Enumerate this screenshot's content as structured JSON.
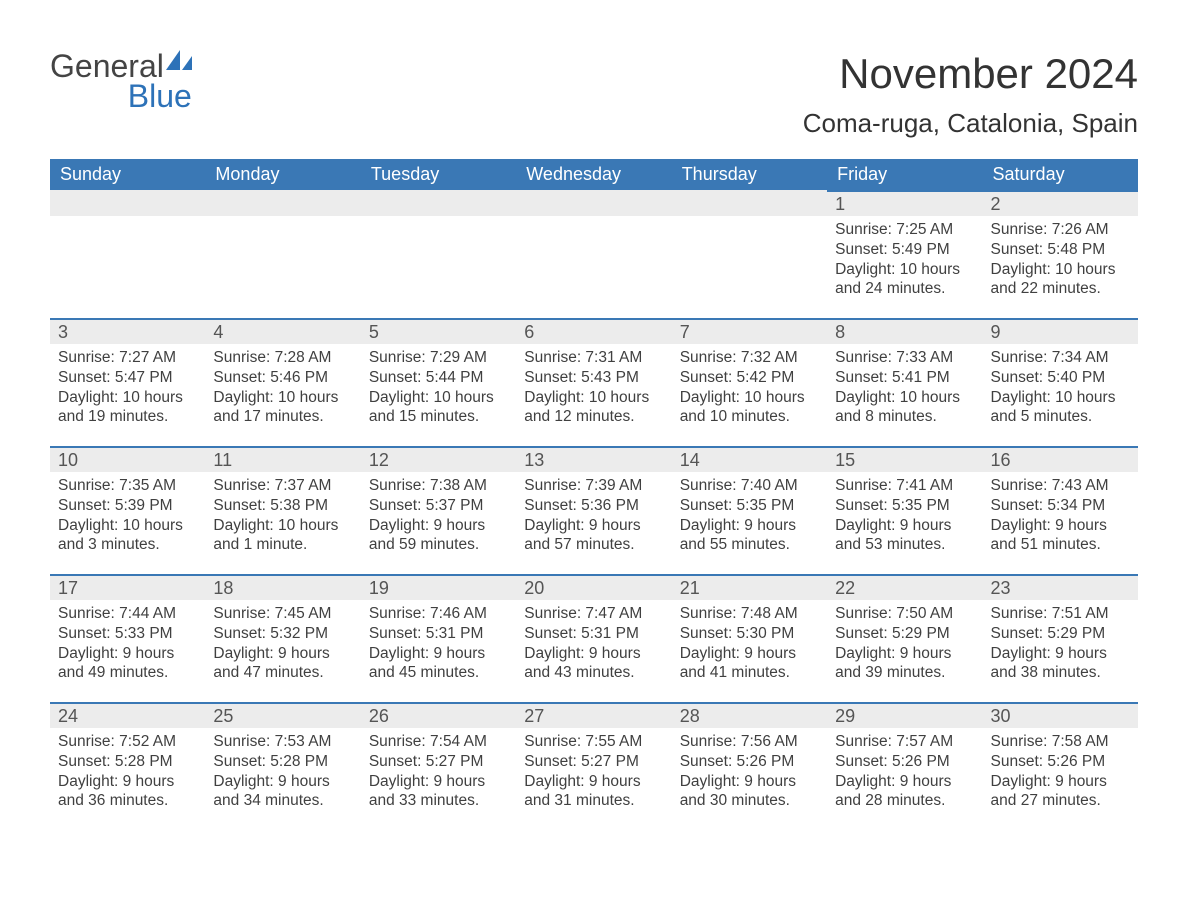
{
  "brand": {
    "general": "General",
    "blue": "Blue",
    "sail_color": "#2d72b8"
  },
  "title": "November 2024",
  "location": "Coma-ruga, Catalonia, Spain",
  "colors": {
    "header_bg": "#3a78b5",
    "header_text": "#ffffff",
    "row_accent": "#3a78b5",
    "daynum_bg": "#ececec",
    "body_text": "#404040",
    "page_bg": "#ffffff"
  },
  "typography": {
    "title_fontsize": 42,
    "location_fontsize": 26,
    "weekday_fontsize": 18,
    "daynum_fontsize": 18,
    "body_fontsize": 15.5
  },
  "weekdays": [
    "Sunday",
    "Monday",
    "Tuesday",
    "Wednesday",
    "Thursday",
    "Friday",
    "Saturday"
  ],
  "grid": {
    "rows": 5,
    "cols": 7,
    "first_weekday_index": 5
  },
  "days": [
    {
      "n": 1,
      "sunrise": "7:25 AM",
      "sunset": "5:49 PM",
      "daylight": "10 hours and 24 minutes."
    },
    {
      "n": 2,
      "sunrise": "7:26 AM",
      "sunset": "5:48 PM",
      "daylight": "10 hours and 22 minutes."
    },
    {
      "n": 3,
      "sunrise": "7:27 AM",
      "sunset": "5:47 PM",
      "daylight": "10 hours and 19 minutes."
    },
    {
      "n": 4,
      "sunrise": "7:28 AM",
      "sunset": "5:46 PM",
      "daylight": "10 hours and 17 minutes."
    },
    {
      "n": 5,
      "sunrise": "7:29 AM",
      "sunset": "5:44 PM",
      "daylight": "10 hours and 15 minutes."
    },
    {
      "n": 6,
      "sunrise": "7:31 AM",
      "sunset": "5:43 PM",
      "daylight": "10 hours and 12 minutes."
    },
    {
      "n": 7,
      "sunrise": "7:32 AM",
      "sunset": "5:42 PM",
      "daylight": "10 hours and 10 minutes."
    },
    {
      "n": 8,
      "sunrise": "7:33 AM",
      "sunset": "5:41 PM",
      "daylight": "10 hours and 8 minutes."
    },
    {
      "n": 9,
      "sunrise": "7:34 AM",
      "sunset": "5:40 PM",
      "daylight": "10 hours and 5 minutes."
    },
    {
      "n": 10,
      "sunrise": "7:35 AM",
      "sunset": "5:39 PM",
      "daylight": "10 hours and 3 minutes."
    },
    {
      "n": 11,
      "sunrise": "7:37 AM",
      "sunset": "5:38 PM",
      "daylight": "10 hours and 1 minute."
    },
    {
      "n": 12,
      "sunrise": "7:38 AM",
      "sunset": "5:37 PM",
      "daylight": "9 hours and 59 minutes."
    },
    {
      "n": 13,
      "sunrise": "7:39 AM",
      "sunset": "5:36 PM",
      "daylight": "9 hours and 57 minutes."
    },
    {
      "n": 14,
      "sunrise": "7:40 AM",
      "sunset": "5:35 PM",
      "daylight": "9 hours and 55 minutes."
    },
    {
      "n": 15,
      "sunrise": "7:41 AM",
      "sunset": "5:35 PM",
      "daylight": "9 hours and 53 minutes."
    },
    {
      "n": 16,
      "sunrise": "7:43 AM",
      "sunset": "5:34 PM",
      "daylight": "9 hours and 51 minutes."
    },
    {
      "n": 17,
      "sunrise": "7:44 AM",
      "sunset": "5:33 PM",
      "daylight": "9 hours and 49 minutes."
    },
    {
      "n": 18,
      "sunrise": "7:45 AM",
      "sunset": "5:32 PM",
      "daylight": "9 hours and 47 minutes."
    },
    {
      "n": 19,
      "sunrise": "7:46 AM",
      "sunset": "5:31 PM",
      "daylight": "9 hours and 45 minutes."
    },
    {
      "n": 20,
      "sunrise": "7:47 AM",
      "sunset": "5:31 PM",
      "daylight": "9 hours and 43 minutes."
    },
    {
      "n": 21,
      "sunrise": "7:48 AM",
      "sunset": "5:30 PM",
      "daylight": "9 hours and 41 minutes."
    },
    {
      "n": 22,
      "sunrise": "7:50 AM",
      "sunset": "5:29 PM",
      "daylight": "9 hours and 39 minutes."
    },
    {
      "n": 23,
      "sunrise": "7:51 AM",
      "sunset": "5:29 PM",
      "daylight": "9 hours and 38 minutes."
    },
    {
      "n": 24,
      "sunrise": "7:52 AM",
      "sunset": "5:28 PM",
      "daylight": "9 hours and 36 minutes."
    },
    {
      "n": 25,
      "sunrise": "7:53 AM",
      "sunset": "5:28 PM",
      "daylight": "9 hours and 34 minutes."
    },
    {
      "n": 26,
      "sunrise": "7:54 AM",
      "sunset": "5:27 PM",
      "daylight": "9 hours and 33 minutes."
    },
    {
      "n": 27,
      "sunrise": "7:55 AM",
      "sunset": "5:27 PM",
      "daylight": "9 hours and 31 minutes."
    },
    {
      "n": 28,
      "sunrise": "7:56 AM",
      "sunset": "5:26 PM",
      "daylight": "9 hours and 30 minutes."
    },
    {
      "n": 29,
      "sunrise": "7:57 AM",
      "sunset": "5:26 PM",
      "daylight": "9 hours and 28 minutes."
    },
    {
      "n": 30,
      "sunrise": "7:58 AM",
      "sunset": "5:26 PM",
      "daylight": "9 hours and 27 minutes."
    }
  ],
  "labels": {
    "sunrise": "Sunrise:",
    "sunset": "Sunset:",
    "daylight": "Daylight:"
  }
}
